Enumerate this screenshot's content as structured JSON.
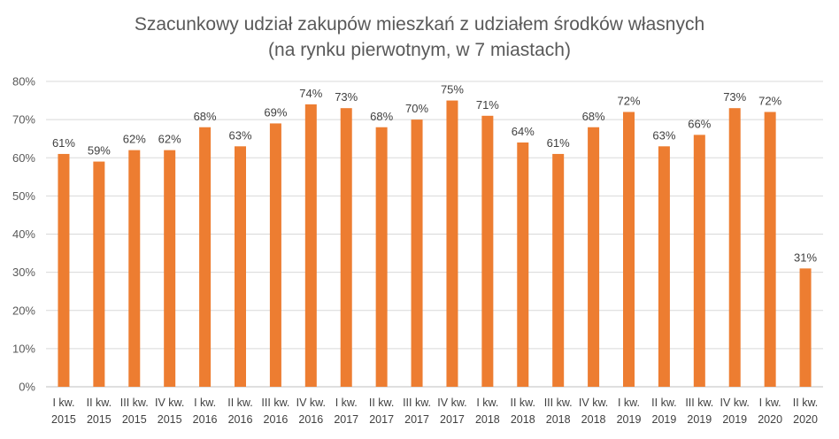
{
  "chart_data": {
    "type": "bar",
    "title_line1": "Szacunkowy udział zakupów mieszkań z udziałem środków własnych",
    "title_line2": "(na rynku pierwotnym, w 7 miastach)",
    "categories": [
      [
        "I kw.",
        "2015"
      ],
      [
        "II kw.",
        "2015"
      ],
      [
        "III kw.",
        "2015"
      ],
      [
        "IV kw.",
        "2015"
      ],
      [
        "I kw.",
        "2016"
      ],
      [
        "II kw.",
        "2016"
      ],
      [
        "III kw.",
        "2016"
      ],
      [
        "IV kw.",
        "2016"
      ],
      [
        "I kw.",
        "2017"
      ],
      [
        "II kw.",
        "2017"
      ],
      [
        "III kw.",
        "2017"
      ],
      [
        "IV kw.",
        "2017"
      ],
      [
        "I kw.",
        "2018"
      ],
      [
        "II kw.",
        "2018"
      ],
      [
        "III kw.",
        "2018"
      ],
      [
        "IV kw.",
        "2018"
      ],
      [
        "I kw.",
        "2019"
      ],
      [
        "II kw.",
        "2019"
      ],
      [
        "III kw.",
        "2019"
      ],
      [
        "IV kw.",
        "2019"
      ],
      [
        "I kw.",
        "2020"
      ],
      [
        "II kw.",
        "2020"
      ]
    ],
    "values": [
      61,
      59,
      62,
      62,
      68,
      63,
      69,
      74,
      73,
      68,
      70,
      75,
      71,
      64,
      61,
      68,
      72,
      63,
      66,
      73,
      72,
      31
    ],
    "data_labels": [
      "61%",
      "59%",
      "62%",
      "62%",
      "68%",
      "63%",
      "69%",
      "74%",
      "73%",
      "68%",
      "70%",
      "75%",
      "71%",
      "64%",
      "61%",
      "68%",
      "72%",
      "63%",
      "66%",
      "73%",
      "72%",
      "31%"
    ],
    "y_ticks": [
      "0%",
      "10%",
      "20%",
      "30%",
      "40%",
      "50%",
      "60%",
      "70%",
      "80%"
    ],
    "ylim": [
      0,
      80
    ],
    "grid": true,
    "bar_color": "#ED7D31",
    "grid_color": "#D9D9D9",
    "xlabel": "",
    "ylabel": ""
  }
}
